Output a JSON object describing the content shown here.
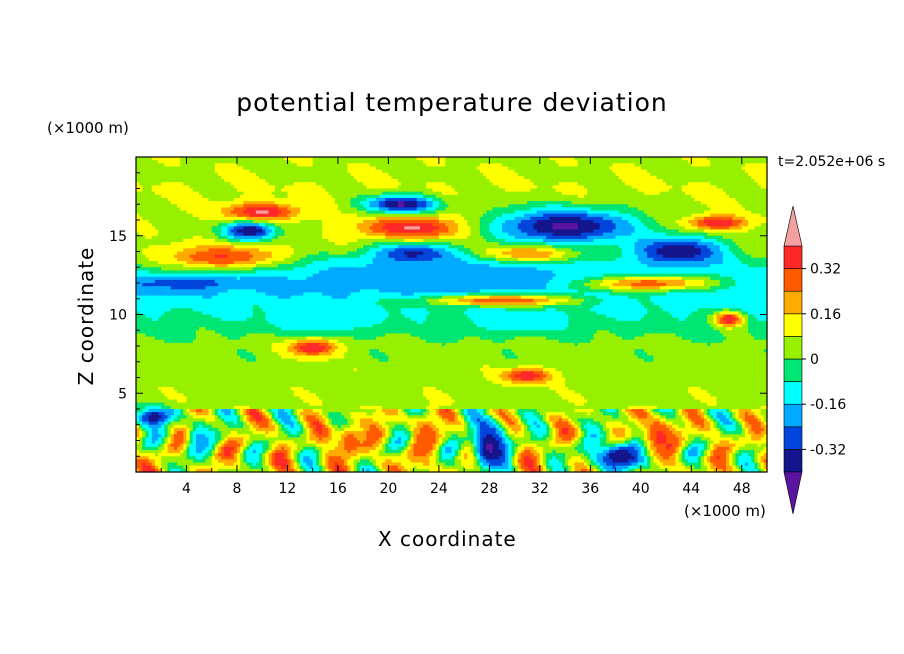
{
  "chart_data": {
    "type": "heatmap",
    "title": "potential temperature deviation",
    "xlabel": "X coordinate",
    "ylabel": "Z coordinate",
    "x_unit": "(×1000 m)",
    "y_unit": "(×1000 m)",
    "time_label": "t=2.052e+06 s",
    "xlim": [
      0,
      50
    ],
    "ylim": [
      0,
      20
    ],
    "x_ticks": [
      4,
      8,
      12,
      16,
      20,
      24,
      28,
      32,
      36,
      40,
      44,
      48
    ],
    "y_ticks": [
      5,
      10,
      15
    ],
    "colorbar": {
      "levels": [
        -0.4,
        -0.32,
        -0.24,
        -0.16,
        -0.08,
        0,
        0.08,
        0.16,
        0.24,
        0.32,
        0.4
      ],
      "colors": [
        "#5a14a0",
        "#14148c",
        "#0046dc",
        "#00aaff",
        "#00ffff",
        "#00e673",
        "#96f000",
        "#ffff00",
        "#ffaa00",
        "#ff5a00",
        "#ff2828",
        "#f5a0a0"
      ],
      "tick_labels": [
        "0.32",
        "0.16",
        "0",
        "-0.16",
        "-0.32"
      ],
      "tick_values": [
        0.32,
        0.16,
        0,
        -0.16,
        -0.32
      ],
      "extend": "both"
    },
    "features": [
      {
        "x": 22,
        "z": 15.5,
        "rx": 4.5,
        "rz": 0.8,
        "value": 0.42
      },
      {
        "x": 10,
        "z": 16.5,
        "rx": 3.0,
        "rz": 0.6,
        "value": 0.42
      },
      {
        "x": 46,
        "z": 15.8,
        "rx": 2.5,
        "rz": 0.5,
        "value": 0.42
      },
      {
        "x": 31,
        "z": 13.8,
        "rx": 3.5,
        "rz": 0.6,
        "value": 0.42
      },
      {
        "x": 7,
        "z": 13.6,
        "rx": 5.0,
        "rz": 0.8,
        "value": 0.36
      },
      {
        "x": 40,
        "z": 12.0,
        "rx": 6.0,
        "rz": 0.55,
        "value": 0.42
      },
      {
        "x": 29,
        "z": 10.9,
        "rx": 6.0,
        "rz": 0.4,
        "value": 0.4
      },
      {
        "x": 14,
        "z": 7.9,
        "rx": 2.0,
        "rz": 0.6,
        "value": 0.4
      },
      {
        "x": 31,
        "z": 6.1,
        "rx": 2.0,
        "rz": 0.5,
        "value": 0.4
      },
      {
        "x": 47,
        "z": 9.7,
        "rx": 1.2,
        "rz": 0.5,
        "value": 0.4
      },
      {
        "x": 21,
        "z": 17.0,
        "rx": 3.0,
        "rz": 0.6,
        "value": -0.42
      },
      {
        "x": 34,
        "z": 15.6,
        "rx": 6.0,
        "rz": 1.2,
        "value": -0.42
      },
      {
        "x": 9,
        "z": 15.3,
        "rx": 2.2,
        "rz": 0.6,
        "value": -0.4
      },
      {
        "x": 43,
        "z": 14.0,
        "rx": 4.0,
        "rz": 1.0,
        "value": -0.4
      },
      {
        "x": 22,
        "z": 13.8,
        "rx": 3.5,
        "rz": 0.7,
        "value": -0.38
      },
      {
        "x": 4,
        "z": 12.0,
        "rx": 3.5,
        "rz": 0.5,
        "value": -0.3
      },
      {
        "x": 25,
        "z": 12.5,
        "rx": 14.0,
        "rz": 1.2,
        "value": -0.22
      },
      {
        "x": 15,
        "z": 9.5,
        "rx": 4.0,
        "rz": 0.7,
        "value": -0.14
      },
      {
        "x": 30,
        "z": 9.5,
        "rx": 4.0,
        "rz": 0.7,
        "value": -0.14
      },
      {
        "x": 28,
        "z": 1.6,
        "rx": 1.5,
        "rz": 1.6,
        "value": -0.42
      },
      {
        "x": 38.5,
        "z": 1.0,
        "rx": 2.5,
        "rz": 1.0,
        "value": -0.4
      },
      {
        "x": 1.5,
        "z": 3.5,
        "rx": 1.5,
        "rz": 0.6,
        "value": -0.38
      },
      {
        "x": 41.5,
        "z": 2.2,
        "rx": 1.5,
        "rz": 1.3,
        "value": 0.34
      },
      {
        "x": 17,
        "z": 2.0,
        "rx": 1.2,
        "rz": 1.2,
        "value": 0.3
      },
      {
        "x": 23,
        "z": 2.2,
        "rx": 1.0,
        "rz": 1.5,
        "value": 0.3
      },
      {
        "x": 5,
        "z": 2.0,
        "rx": 1.0,
        "rz": 1.2,
        "value": -0.2
      }
    ],
    "background": {
      "z_value": [
        [
          0,
          0.1
        ],
        [
          5,
          0.05
        ],
        [
          8,
          0.03
        ],
        [
          10,
          -0.08
        ],
        [
          12,
          -0.18
        ],
        [
          14,
          0.05
        ],
        [
          18,
          0.08
        ],
        [
          20,
          0.06
        ]
      ]
    }
  }
}
